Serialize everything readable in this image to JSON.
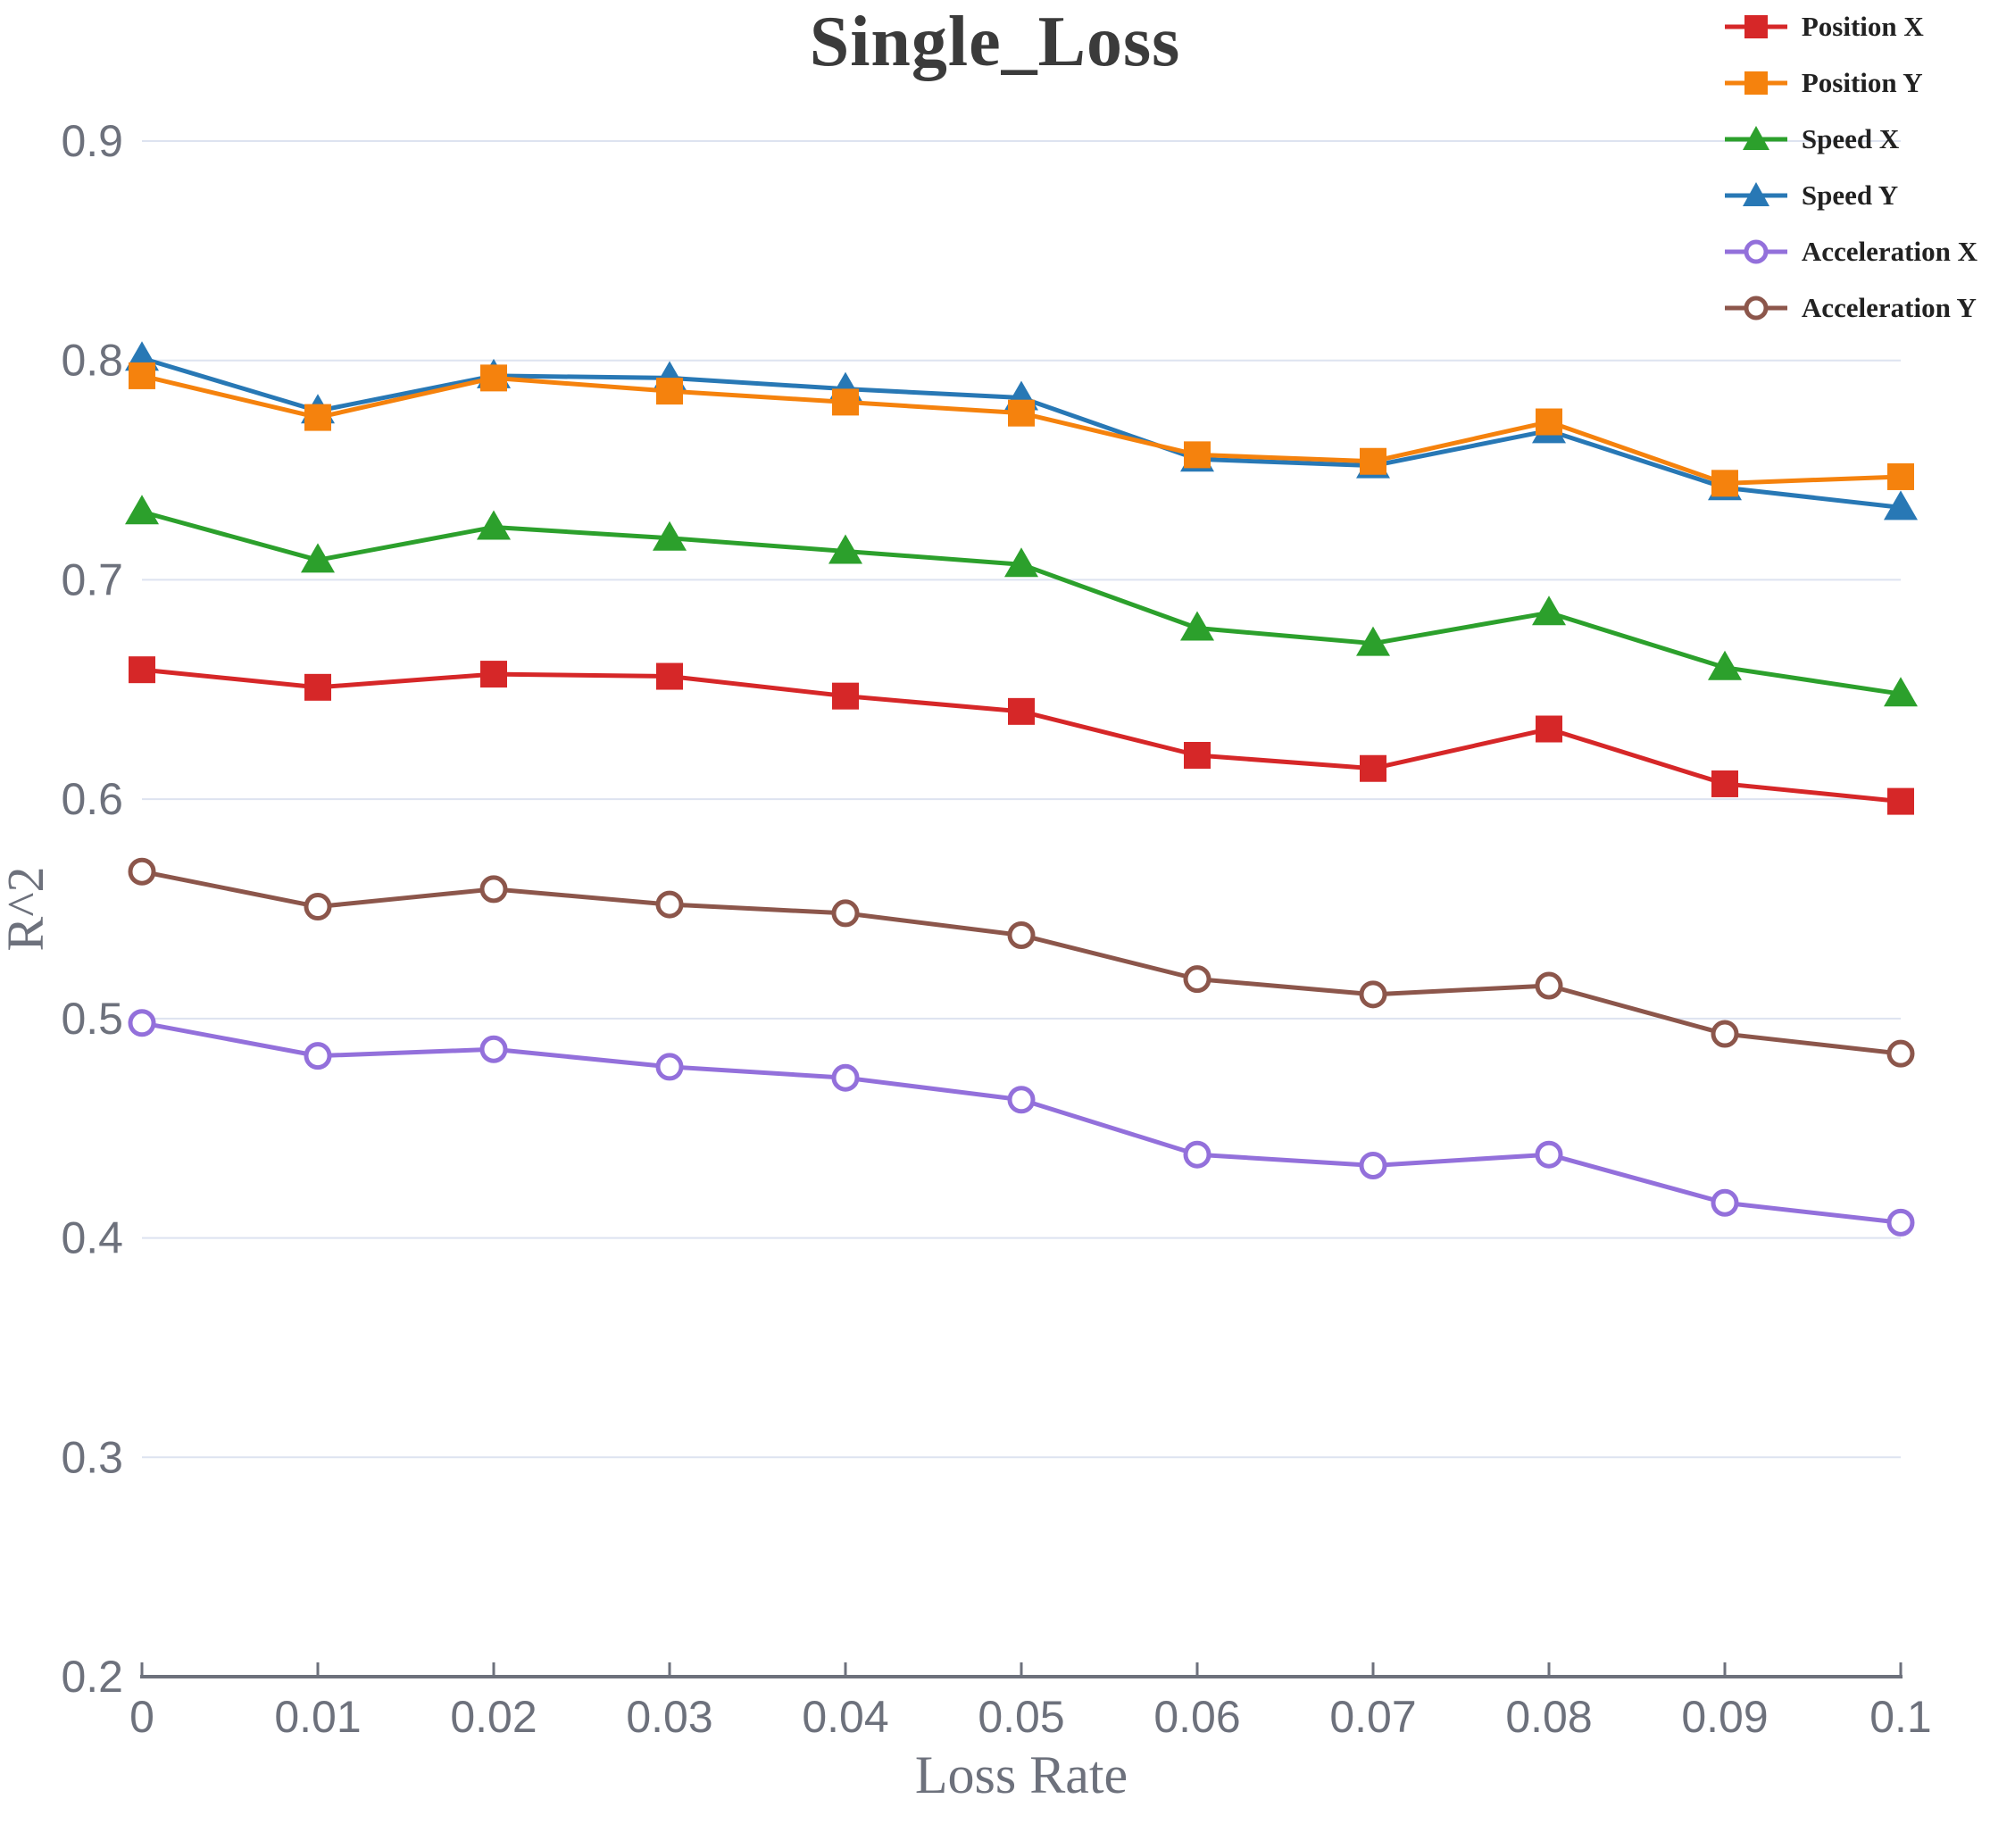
{
  "chart_data": {
    "type": "line",
    "title": "Single_Loss",
    "xlabel": "Loss Rate",
    "ylabel": "R^2",
    "x": [
      0,
      0.01,
      0.02,
      0.03,
      0.04,
      0.05,
      0.06,
      0.07,
      0.08,
      0.09,
      0.1
    ],
    "x_tick_labels": [
      "0",
      "0.01",
      "0.02",
      "0.03",
      "0.04",
      "0.05",
      "0.06",
      "0.07",
      "0.08",
      "0.09",
      "0.1"
    ],
    "y_tick_labels": [
      "0.9",
      "0.8",
      "0.7",
      "0.6",
      "0.5",
      "0.4",
      "0.3",
      "0.2"
    ],
    "y_ticks": [
      0.9,
      0.8,
      0.7,
      0.6,
      0.5,
      0.4,
      0.3,
      0.2
    ],
    "xlim": [
      0,
      0.1
    ],
    "ylim": [
      0.2,
      0.9
    ],
    "grid": "horizontal-only",
    "legend_position": "top-right",
    "draw_order": [
      "Position X",
      "Speed X",
      "Speed Y",
      "Position Y",
      "Acceleration Y",
      "Acceleration X"
    ],
    "series": [
      {
        "name": "Position X",
        "color": "#d62728",
        "marker": "square",
        "values": [
          0.659,
          0.651,
          0.657,
          0.656,
          0.647,
          0.64,
          0.62,
          0.614,
          0.632,
          0.607,
          0.599
        ]
      },
      {
        "name": "Position Y",
        "color": "#f5820d",
        "marker": "square",
        "values": [
          0.793,
          0.774,
          0.792,
          0.786,
          0.781,
          0.776,
          0.757,
          0.754,
          0.772,
          0.744,
          0.747
        ]
      },
      {
        "name": "Speed X",
        "color": "#2ca02c",
        "marker": "triangle",
        "values": [
          0.731,
          0.709,
          0.724,
          0.719,
          0.713,
          0.707,
          0.678,
          0.671,
          0.685,
          0.66,
          0.648
        ]
      },
      {
        "name": "Speed Y",
        "color": "#2878b5",
        "marker": "triangle",
        "values": [
          0.801,
          0.777,
          0.793,
          0.792,
          0.787,
          0.783,
          0.755,
          0.752,
          0.768,
          0.742,
          0.733
        ]
      },
      {
        "name": "Acceleration X",
        "color": "#9370db",
        "marker": "circle-open",
        "values": [
          0.498,
          0.483,
          0.486,
          0.478,
          0.473,
          0.463,
          0.438,
          0.433,
          0.438,
          0.416,
          0.407
        ]
      },
      {
        "name": "Acceleration Y",
        "color": "#8c564b",
        "marker": "circle-open",
        "values": [
          0.567,
          0.551,
          0.559,
          0.552,
          0.548,
          0.538,
          0.518,
          0.511,
          0.515,
          0.493,
          0.484
        ]
      }
    ]
  },
  "colors": {
    "gridline": "#dde3f0",
    "axis": "#6d717c",
    "tick_text": "#6d717c",
    "axis_title_text": "#6d717c",
    "title_text": "#3b3b3b",
    "legend_text": "#222222",
    "background": "#ffffff"
  }
}
